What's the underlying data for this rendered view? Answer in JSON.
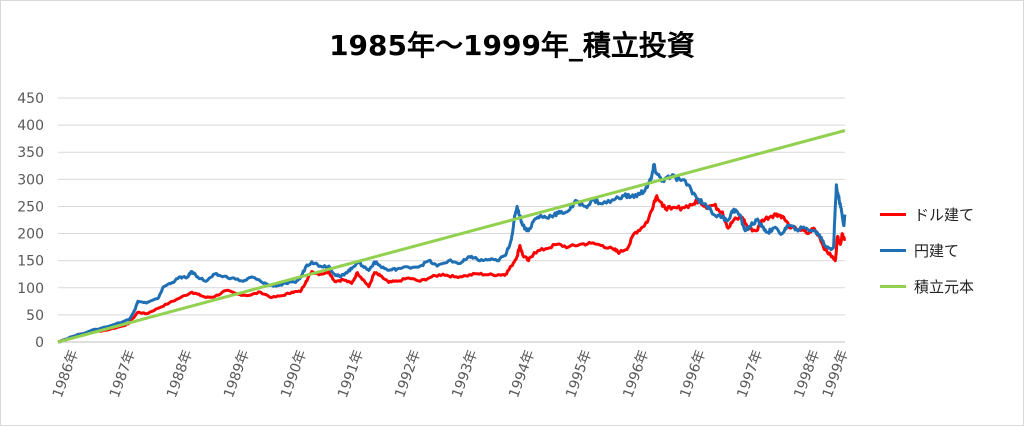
{
  "chart_data": {
    "type": "line",
    "title": "1985年～1999年_積立投資",
    "ylim": [
      0,
      450
    ],
    "yticks": [
      0,
      50,
      100,
      150,
      200,
      250,
      300,
      350,
      400,
      450
    ],
    "xlim": [
      1985.75,
      1999.55
    ],
    "xtick_labels": [
      {
        "label": "1986年",
        "x": 1986.0
      },
      {
        "label": "1987年",
        "x": 1987.0
      },
      {
        "label": "1988年",
        "x": 1988.0
      },
      {
        "label": "1989年",
        "x": 1989.0
      },
      {
        "label": "1990年",
        "x": 1990.0
      },
      {
        "label": "1991年",
        "x": 1991.0
      },
      {
        "label": "1992年",
        "x": 1992.0
      },
      {
        "label": "1993年",
        "x": 1993.0
      },
      {
        "label": "1994年",
        "x": 1994.0
      },
      {
        "label": "1995年",
        "x": 1995.0
      },
      {
        "label": "1996年",
        "x": 1996.0
      },
      {
        "label": "1996年",
        "x": 1997.0
      },
      {
        "label": "1997年",
        "x": 1998.0
      },
      {
        "label": "1998年",
        "x": 1999.0
      },
      {
        "label": "1999年",
        "x": 1999.5
      }
    ],
    "grid": true,
    "legend_position": "right",
    "series": [
      {
        "name": "ドル建て",
        "color": "#ff0000",
        "points": [
          [
            1985.75,
            0
          ],
          [
            1986.0,
            10
          ],
          [
            1986.3,
            18
          ],
          [
            1986.6,
            22
          ],
          [
            1986.9,
            30
          ],
          [
            1987.0,
            35
          ],
          [
            1987.15,
            55
          ],
          [
            1987.3,
            52
          ],
          [
            1987.5,
            62
          ],
          [
            1987.7,
            72
          ],
          [
            1987.9,
            82
          ],
          [
            1988.1,
            92
          ],
          [
            1988.2,
            88
          ],
          [
            1988.35,
            82
          ],
          [
            1988.5,
            84
          ],
          [
            1988.7,
            95
          ],
          [
            1988.9,
            88
          ],
          [
            1989.1,
            86
          ],
          [
            1989.3,
            92
          ],
          [
            1989.5,
            82
          ],
          [
            1989.7,
            86
          ],
          [
            1989.85,
            92
          ],
          [
            1990.0,
            93
          ],
          [
            1990.1,
            112
          ],
          [
            1990.2,
            130
          ],
          [
            1990.35,
            125
          ],
          [
            1990.5,
            130
          ],
          [
            1990.6,
            112
          ],
          [
            1990.75,
            115
          ],
          [
            1990.9,
            108
          ],
          [
            1991.0,
            128
          ],
          [
            1991.1,
            115
          ],
          [
            1991.2,
            102
          ],
          [
            1991.3,
            128
          ],
          [
            1991.4,
            122
          ],
          [
            1991.55,
            110
          ],
          [
            1991.7,
            112
          ],
          [
            1991.9,
            118
          ],
          [
            1992.1,
            112
          ],
          [
            1992.3,
            120
          ],
          [
            1992.5,
            125
          ],
          [
            1992.7,
            120
          ],
          [
            1992.9,
            122
          ],
          [
            1993.1,
            126
          ],
          [
            1993.3,
            124
          ],
          [
            1993.5,
            124
          ],
          [
            1993.6,
            125
          ],
          [
            1993.7,
            140
          ],
          [
            1993.8,
            158
          ],
          [
            1993.85,
            178
          ],
          [
            1993.9,
            160
          ],
          [
            1994.0,
            150
          ],
          [
            1994.1,
            165
          ],
          [
            1994.3,
            172
          ],
          [
            1994.5,
            180
          ],
          [
            1994.7,
            175
          ],
          [
            1994.9,
            180
          ],
          [
            1995.1,
            182
          ],
          [
            1995.3,
            178
          ],
          [
            1995.5,
            170
          ],
          [
            1995.6,
            165
          ],
          [
            1995.75,
            175
          ],
          [
            1995.85,
            200
          ],
          [
            1996.0,
            212
          ],
          [
            1996.1,
            225
          ],
          [
            1996.2,
            258
          ],
          [
            1996.25,
            270
          ],
          [
            1996.35,
            250
          ],
          [
            1996.5,
            245
          ],
          [
            1996.7,
            248
          ],
          [
            1996.9,
            255
          ],
          [
            1997.0,
            262
          ],
          [
            1997.1,
            250
          ],
          [
            1997.25,
            252
          ],
          [
            1997.4,
            240
          ],
          [
            1997.5,
            210
          ],
          [
            1997.6,
            225
          ],
          [
            1997.75,
            230
          ],
          [
            1997.85,
            210
          ],
          [
            1998.0,
            205
          ],
          [
            1998.1,
            225
          ],
          [
            1998.25,
            232
          ],
          [
            1998.35,
            236
          ],
          [
            1998.45,
            232
          ],
          [
            1998.6,
            210
          ],
          [
            1998.75,
            208
          ],
          [
            1998.9,
            200
          ],
          [
            1999.0,
            210
          ],
          [
            1999.1,
            195
          ],
          [
            1999.2,
            170
          ],
          [
            1999.3,
            160
          ],
          [
            1999.38,
            150
          ],
          [
            1999.42,
            195
          ],
          [
            1999.47,
            180
          ],
          [
            1999.5,
            200
          ],
          [
            1999.55,
            190
          ]
        ]
      },
      {
        "name": "円建て",
        "color": "#1f6fb4",
        "points": [
          [
            1985.75,
            0
          ],
          [
            1986.0,
            10
          ],
          [
            1986.3,
            20
          ],
          [
            1986.6,
            28
          ],
          [
            1986.9,
            38
          ],
          [
            1987.0,
            42
          ],
          [
            1987.1,
            60
          ],
          [
            1987.15,
            75
          ],
          [
            1987.3,
            72
          ],
          [
            1987.5,
            80
          ],
          [
            1987.6,
            102
          ],
          [
            1987.75,
            110
          ],
          [
            1987.9,
            120
          ],
          [
            1988.0,
            118
          ],
          [
            1988.1,
            130
          ],
          [
            1988.2,
            120
          ],
          [
            1988.35,
            112
          ],
          [
            1988.5,
            125
          ],
          [
            1988.6,
            122
          ],
          [
            1988.8,
            118
          ],
          [
            1989.0,
            112
          ],
          [
            1989.15,
            120
          ],
          [
            1989.3,
            112
          ],
          [
            1989.45,
            105
          ],
          [
            1989.6,
            104
          ],
          [
            1989.75,
            108
          ],
          [
            1989.9,
            110
          ],
          [
            1990.0,
            118
          ],
          [
            1990.1,
            140
          ],
          [
            1990.2,
            148
          ],
          [
            1990.35,
            140
          ],
          [
            1990.5,
            140
          ],
          [
            1990.6,
            125
          ],
          [
            1990.7,
            120
          ],
          [
            1990.8,
            128
          ],
          [
            1990.9,
            135
          ],
          [
            1991.0,
            148
          ],
          [
            1991.1,
            140
          ],
          [
            1991.2,
            132
          ],
          [
            1991.3,
            148
          ],
          [
            1991.4,
            140
          ],
          [
            1991.55,
            132
          ],
          [
            1991.7,
            135
          ],
          [
            1991.9,
            138
          ],
          [
            1992.1,
            140
          ],
          [
            1992.25,
            150
          ],
          [
            1992.4,
            140
          ],
          [
            1992.6,
            150
          ],
          [
            1992.8,
            145
          ],
          [
            1992.9,
            152
          ],
          [
            1993.0,
            158
          ],
          [
            1993.15,
            150
          ],
          [
            1993.3,
            152
          ],
          [
            1993.45,
            150
          ],
          [
            1993.6,
            160
          ],
          [
            1993.7,
            190
          ],
          [
            1993.75,
            225
          ],
          [
            1993.8,
            250
          ],
          [
            1993.85,
            232
          ],
          [
            1993.9,
            215
          ],
          [
            1994.0,
            205
          ],
          [
            1994.1,
            225
          ],
          [
            1994.2,
            232
          ],
          [
            1994.3,
            230
          ],
          [
            1994.45,
            235
          ],
          [
            1994.55,
            238
          ],
          [
            1994.7,
            242
          ],
          [
            1994.85,
            260
          ],
          [
            1995.0,
            250
          ],
          [
            1995.15,
            262
          ],
          [
            1995.3,
            255
          ],
          [
            1995.5,
            262
          ],
          [
            1995.65,
            270
          ],
          [
            1995.8,
            268
          ],
          [
            1995.95,
            272
          ],
          [
            1996.05,
            282
          ],
          [
            1996.15,
            300
          ],
          [
            1996.2,
            325
          ],
          [
            1996.25,
            310
          ],
          [
            1996.35,
            298
          ],
          [
            1996.5,
            305
          ],
          [
            1996.65,
            300
          ],
          [
            1996.8,
            290
          ],
          [
            1996.95,
            265
          ],
          [
            1997.1,
            255
          ],
          [
            1997.25,
            235
          ],
          [
            1997.4,
            230
          ],
          [
            1997.5,
            225
          ],
          [
            1997.6,
            245
          ],
          [
            1997.7,
            235
          ],
          [
            1997.8,
            205
          ],
          [
            1997.9,
            215
          ],
          [
            1998.0,
            225
          ],
          [
            1998.1,
            212
          ],
          [
            1998.2,
            202
          ],
          [
            1998.3,
            210
          ],
          [
            1998.45,
            200
          ],
          [
            1998.55,
            215
          ],
          [
            1998.7,
            208
          ],
          [
            1998.85,
            210
          ],
          [
            1999.0,
            205
          ],
          [
            1999.1,
            198
          ],
          [
            1999.2,
            178
          ],
          [
            1999.3,
            172
          ],
          [
            1999.35,
            175
          ],
          [
            1999.38,
            250
          ],
          [
            1999.4,
            290
          ],
          [
            1999.45,
            260
          ],
          [
            1999.5,
            235
          ],
          [
            1999.53,
            215
          ],
          [
            1999.55,
            235
          ]
        ]
      },
      {
        "name": "積立元本",
        "color": "#92d050",
        "points": [
          [
            1985.75,
            0
          ],
          [
            1999.55,
            390
          ]
        ]
      }
    ]
  }
}
